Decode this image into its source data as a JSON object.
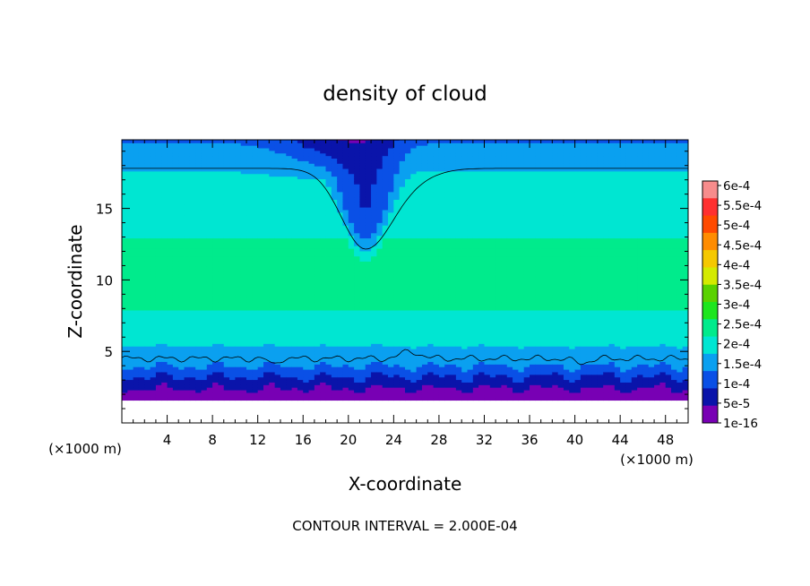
{
  "chart_data": {
    "type": "heatmap",
    "title": "density of cloud",
    "xlabel": "X-coordinate",
    "ylabel": "Z-coordinate",
    "x_unit_left": "(×1000 m)",
    "x_unit_right": "(×1000 m)",
    "footer": "CONTOUR INTERVAL = 2.000E-04",
    "xlim": [
      0,
      50
    ],
    "ylim": [
      0,
      19.8
    ],
    "xticks": [
      "4",
      "8",
      "12",
      "16",
      "20",
      "24",
      "28",
      "32",
      "36",
      "40",
      "44",
      "48"
    ],
    "yticks": [
      "5",
      "10",
      "15"
    ],
    "colorbar_labels": [
      "6e-4",
      "5.5e-4",
      "5e-4",
      "4.5e-4",
      "4e-4",
      "3.5e-4",
      "3e-4",
      "2.5e-4",
      "2e-4",
      "1.5e-4",
      "1e-4",
      "5e-5",
      "1e-16"
    ],
    "colorbar_colors": [
      "#f78c8c",
      "#ff3030",
      "#ff4a00",
      "#ff8c00",
      "#f5c800",
      "#d4ea00",
      "#5ad200",
      "#1ee61e",
      "#00eb8c",
      "#00e6d2",
      "#0aa0f0",
      "#0a50e6",
      "#0a14aa",
      "#7800b4"
    ],
    "contour_level": "2e-4",
    "profile": {
      "z": [
        1.6,
        2.0,
        2.5,
        3.0,
        3.5,
        4.2,
        5.5,
        7.0,
        9.0,
        10.5,
        12.5,
        14.5,
        16.5,
        17.5,
        18.5,
        19.8
      ],
      "density": [
        5e-06,
        3e-05,
        6e-05,
        9e-05,
        0.00012,
        0.00017,
        0.000205,
        0.000235,
        0.00027,
        0.000275,
        0.000255,
        0.000225,
        0.00021,
        0.0002,
        0.00018,
        0.00014
      ]
    },
    "ground_top_z": 1.6,
    "lower_contour_z": 4.5,
    "upper_contour_z": 17.8,
    "dip": {
      "x_center": 21.5,
      "min_z": 12.2,
      "affected_x": [
        14,
        28
      ]
    },
    "grid": false,
    "legend": "right colorbar"
  }
}
